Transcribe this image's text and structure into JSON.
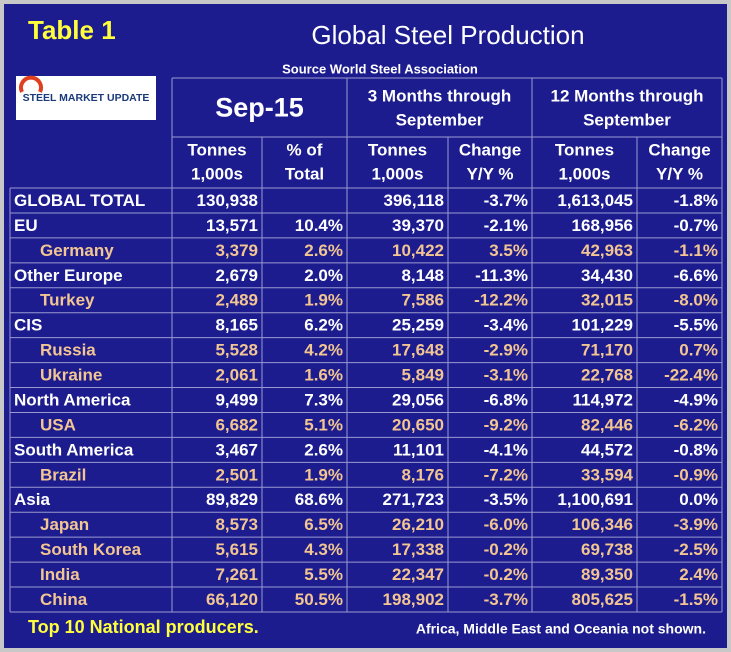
{
  "header": {
    "badge": "Table 1",
    "title": "Global Steel Production",
    "source": "Source World Steel Association",
    "logo": "STEEL MARKET UPDATE"
  },
  "table": {
    "period_headers": [
      [
        "Sep-15"
      ],
      [
        "3 Months through",
        "September"
      ],
      [
        "12 Months through",
        "September"
      ]
    ],
    "column_headers": [
      [
        "Tonnes",
        "1,000s"
      ],
      [
        "% of",
        "Total"
      ],
      [
        "Tonnes",
        "1,000s"
      ],
      [
        "Change",
        "Y/Y %"
      ],
      [
        "Tonnes",
        "1,000s"
      ],
      [
        "Change",
        "Y/Y %"
      ]
    ],
    "rows": [
      {
        "label": "GLOBAL TOTAL",
        "cells": [
          "130,938",
          null,
          "396,118",
          "-3.7%",
          "1,613,045",
          "-1.8%"
        ],
        "countries": []
      },
      {
        "label": "EU",
        "cells": [
          "13,571",
          "10.4%",
          "39,370",
          "-2.1%",
          "168,956",
          "-0.7%"
        ],
        "countries": [
          {
            "label": "Germany",
            "cells": [
              "3,379",
              "2.6%",
              "10,422",
              "3.5%",
              "42,963",
              "-1.1%"
            ]
          }
        ]
      },
      {
        "label": "Other Europe",
        "cells": [
          "2,679",
          "2.0%",
          "8,148",
          "-11.3%",
          "34,430",
          "-6.6%"
        ],
        "countries": [
          {
            "label": "Turkey",
            "cells": [
              "2,489",
              "1.9%",
              "7,586",
              "-12.2%",
              "32,015",
              "-8.0%"
            ]
          }
        ]
      },
      {
        "label": "CIS",
        "cells": [
          "8,165",
          "6.2%",
          "25,259",
          "-3.4%",
          "101,229",
          "-5.5%"
        ],
        "countries": [
          {
            "label": "Russia",
            "cells": [
              "5,528",
              "4.2%",
              "17,648",
              "-2.9%",
              "71,170",
              "0.7%"
            ]
          },
          {
            "label": "Ukraine",
            "cells": [
              "2,061",
              "1.6%",
              "5,849",
              "-3.1%",
              "22,768",
              "-22.4%"
            ]
          }
        ]
      },
      {
        "label": "North America",
        "cells": [
          "9,499",
          "7.3%",
          "29,056",
          "-6.8%",
          "114,972",
          "-4.9%"
        ],
        "countries": [
          {
            "label": "USA",
            "cells": [
              "6,682",
              "5.1%",
              "20,650",
              "-9.2%",
              "82,446",
              "-6.2%"
            ]
          }
        ]
      },
      {
        "label": "South America",
        "cells": [
          "3,467",
          "2.6%",
          "11,101",
          "-4.1%",
          "44,572",
          "-0.8%"
        ],
        "countries": [
          {
            "label": "Brazil",
            "cells": [
              "2,501",
              "1.9%",
              "8,176",
              "-7.2%",
              "33,594",
              "-0.9%"
            ]
          }
        ]
      },
      {
        "label": "Asia",
        "cells": [
          "89,829",
          "68.6%",
          "271,723",
          "-3.5%",
          "1,100,691",
          "0.0%"
        ],
        "countries": [
          {
            "label": "Japan",
            "cells": [
              "8,573",
              "6.5%",
              "26,210",
              "-6.0%",
              "106,346",
              "-3.9%"
            ]
          },
          {
            "label": "South Korea",
            "cells": [
              "5,615",
              "4.3%",
              "17,338",
              "-0.2%",
              "69,738",
              "-2.5%"
            ]
          },
          {
            "label": "India",
            "cells": [
              "7,261",
              "5.5%",
              "22,347",
              "-0.2%",
              "89,350",
              "2.4%"
            ]
          },
          {
            "label": "China",
            "cells": [
              "66,120",
              "50.5%",
              "198,902",
              "-3.7%",
              "805,625",
              "-1.5%"
            ]
          }
        ]
      }
    ]
  },
  "footer": {
    "note": "Top 10 National producers.",
    "disclaimer": "Africa, Middle East and Oceania not shown."
  }
}
